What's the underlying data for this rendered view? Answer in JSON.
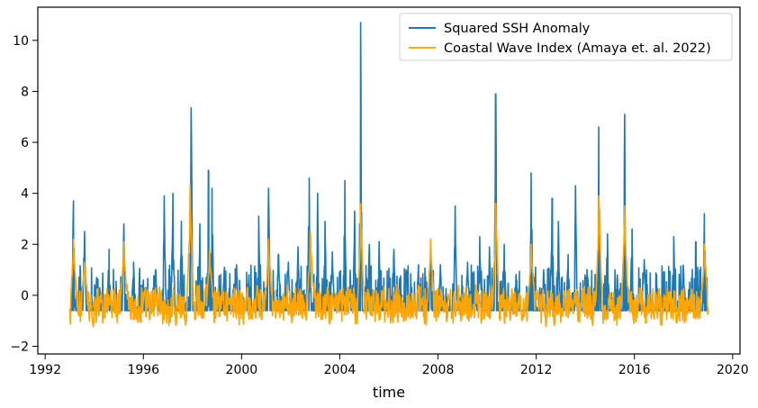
{
  "chart_data": {
    "type": "line",
    "title": "",
    "xlabel": "time",
    "ylabel": "",
    "xlim": [
      1991.7,
      2020.3
    ],
    "ylim": [
      -2.3,
      11.3
    ],
    "x_ticks": [
      1992,
      1996,
      2000,
      2004,
      2008,
      2012,
      2016,
      2020
    ],
    "y_ticks": [
      -2,
      0,
      2,
      4,
      6,
      8,
      10
    ],
    "grid": false,
    "legend_position": "top-right",
    "colors": {
      "ssh": "#1f77b4",
      "cwi": "#ffa500"
    },
    "series": [
      {
        "name": "Squared SSH Anomaly",
        "x_start": 1993.0,
        "x_end": 2019.0,
        "baseline": -0.6,
        "peaks": [
          [
            1993.15,
            3.7
          ],
          [
            1993.6,
            2.5
          ],
          [
            1994.1,
            0.7
          ],
          [
            1994.6,
            1.8
          ],
          [
            1995.2,
            2.8
          ],
          [
            1995.6,
            1.3
          ],
          [
            1996.0,
            0.6
          ],
          [
            1996.5,
            1.0
          ],
          [
            1996.85,
            3.9
          ],
          [
            1997.2,
            4.0
          ],
          [
            1997.55,
            2.9
          ],
          [
            1997.95,
            7.35
          ],
          [
            1998.3,
            2.8
          ],
          [
            1998.65,
            4.9
          ],
          [
            1998.8,
            4.2
          ],
          [
            1999.3,
            1.1
          ],
          [
            1999.8,
            1.2
          ],
          [
            2000.3,
            0.8
          ],
          [
            2000.7,
            3.1
          ],
          [
            2001.1,
            4.2
          ],
          [
            2001.5,
            1.6
          ],
          [
            2001.9,
            1.3
          ],
          [
            2002.3,
            1.9
          ],
          [
            2002.75,
            4.6
          ],
          [
            2003.1,
            4.0
          ],
          [
            2003.4,
            2.9
          ],
          [
            2003.7,
            1.7
          ],
          [
            2004.2,
            4.5
          ],
          [
            2004.6,
            3.3
          ],
          [
            2004.85,
            10.7
          ],
          [
            2005.2,
            2.0
          ],
          [
            2005.6,
            2.1
          ],
          [
            2006.2,
            1.8
          ],
          [
            2006.7,
            1.0
          ],
          [
            2007.2,
            1.2
          ],
          [
            2007.7,
            1.7
          ],
          [
            2008.1,
            1.2
          ],
          [
            2008.7,
            3.5
          ],
          [
            2009.2,
            1.3
          ],
          [
            2009.7,
            2.3
          ],
          [
            2010.1,
            1.9
          ],
          [
            2010.35,
            7.9
          ],
          [
            2010.7,
            2.0
          ],
          [
            2011.2,
            0.6
          ],
          [
            2011.8,
            4.8
          ],
          [
            2012.3,
            1.0
          ],
          [
            2012.65,
            3.8
          ],
          [
            2012.9,
            2.9
          ],
          [
            2013.3,
            1.6
          ],
          [
            2013.6,
            4.3
          ],
          [
            2014.1,
            0.7
          ],
          [
            2014.55,
            6.6
          ],
          [
            2014.9,
            2.4
          ],
          [
            2015.3,
            0.8
          ],
          [
            2015.6,
            7.1
          ],
          [
            2015.9,
            2.6
          ],
          [
            2016.4,
            1.4
          ],
          [
            2016.9,
            0.8
          ],
          [
            2017.6,
            2.3
          ],
          [
            2018.0,
            1.0
          ],
          [
            2018.5,
            2.1
          ],
          [
            2018.85,
            3.2
          ]
        ]
      },
      {
        "name": "Coastal Wave Index (Amaya et. al. 2022)",
        "x_start": 1993.0,
        "x_end": 2019.0,
        "peaks": [
          [
            1993.15,
            2.2
          ],
          [
            1993.6,
            1.3
          ],
          [
            1995.2,
            2.1
          ],
          [
            1997.9,
            4.3
          ],
          [
            1998.7,
            1.8
          ],
          [
            2001.1,
            2.2
          ],
          [
            2002.8,
            2.5
          ],
          [
            2004.85,
            3.6
          ],
          [
            2007.7,
            2.2
          ],
          [
            2010.35,
            3.6
          ],
          [
            2011.8,
            2.0
          ],
          [
            2014.55,
            3.9
          ],
          [
            2015.6,
            3.5
          ],
          [
            2018.85,
            2.0
          ]
        ]
      }
    ]
  }
}
